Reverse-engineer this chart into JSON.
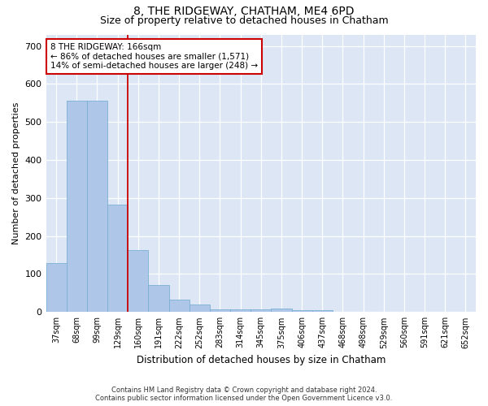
{
  "title": "8, THE RIDGEWAY, CHATHAM, ME4 6PD",
  "subtitle": "Size of property relative to detached houses in Chatham",
  "xlabel": "Distribution of detached houses by size in Chatham",
  "ylabel": "Number of detached properties",
  "categories": [
    "37sqm",
    "68sqm",
    "99sqm",
    "129sqm",
    "160sqm",
    "191sqm",
    "222sqm",
    "252sqm",
    "283sqm",
    "314sqm",
    "345sqm",
    "375sqm",
    "406sqm",
    "437sqm",
    "468sqm",
    "498sqm",
    "529sqm",
    "560sqm",
    "591sqm",
    "621sqm",
    "652sqm"
  ],
  "values": [
    128,
    557,
    557,
    283,
    163,
    72,
    33,
    19,
    8,
    8,
    8,
    10,
    4,
    4,
    0,
    0,
    0,
    0,
    0,
    0,
    0
  ],
  "bar_color": "#aec6e8",
  "bar_edge_color": "#7aafd4",
  "fig_background": "#ffffff",
  "ax_background": "#dce6f5",
  "grid_color": "#ffffff",
  "vline_color": "#cc0000",
  "vline_x": 3.5,
  "annotation_line1": "8 THE RIDGEWAY: 166sqm",
  "annotation_line2": "← 86% of detached houses are smaller (1,571)",
  "annotation_line3": "14% of semi-detached houses are larger (248) →",
  "annotation_box_color": "#cc0000",
  "footer_line1": "Contains HM Land Registry data © Crown copyright and database right 2024.",
  "footer_line2": "Contains public sector information licensed under the Open Government Licence v3.0.",
  "ylim": [
    0,
    730
  ],
  "yticks": [
    0,
    100,
    200,
    300,
    400,
    500,
    600,
    700
  ],
  "title_fontsize": 10,
  "subtitle_fontsize": 9,
  "tick_fontsize": 7,
  "ylabel_fontsize": 8,
  "xlabel_fontsize": 8.5,
  "annotation_fontsize": 7.5,
  "footer_fontsize": 6
}
